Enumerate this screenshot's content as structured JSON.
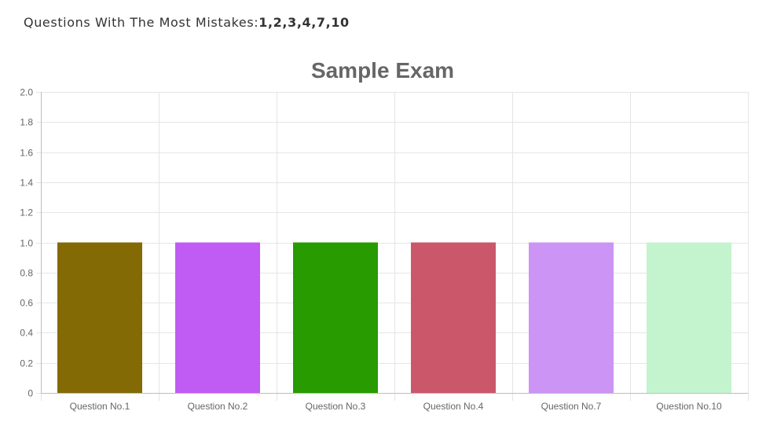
{
  "header": {
    "label": "Questions With The Most Mistakes:",
    "value": "1,2,3,4,7,10"
  },
  "chart_data": {
    "type": "bar",
    "title": "Sample Exam",
    "xlabel": "",
    "ylabel": "",
    "categories": [
      "Question No.1",
      "Question No.2",
      "Question No.3",
      "Question No.4",
      "Question No.7",
      "Question No.10"
    ],
    "values": [
      1,
      1,
      1,
      1,
      1,
      1
    ],
    "colors": [
      "#836a05",
      "#c05cf4",
      "#279b00",
      "#cb576a",
      "#cc94f4",
      "#c4f4ce"
    ],
    "ylim": [
      0,
      2.0
    ],
    "yticks": [
      "0",
      "0.2",
      "0.4",
      "0.6",
      "0.8",
      "1.0",
      "1.2",
      "1.4",
      "1.6",
      "1.8",
      "2.0"
    ],
    "grid": true,
    "legend": "none",
    "colors_style": {
      "grid": "#e5e5e5",
      "axis": "#bdbdbd",
      "text": "#666666",
      "title": "#666666"
    }
  }
}
